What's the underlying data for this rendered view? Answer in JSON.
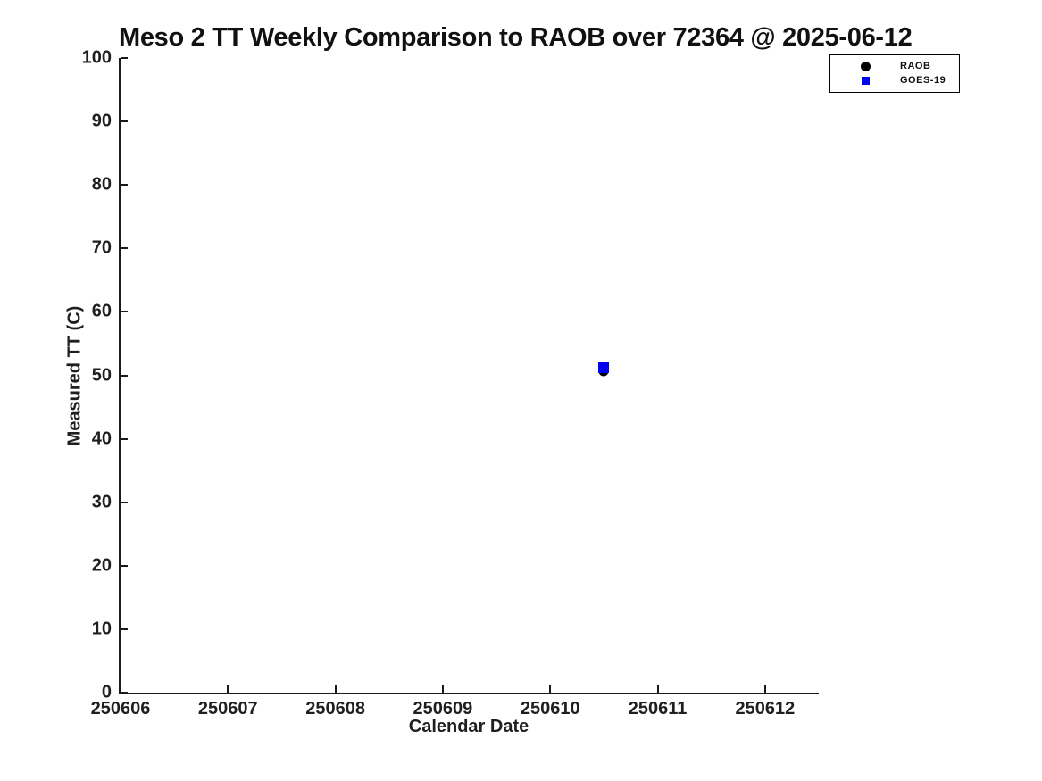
{
  "chart_data": {
    "type": "scatter",
    "title": "Meso 2 TT Weekly Comparison to RAOB over 72364 @ 2025-06-12",
    "xlabel": "Calendar Date",
    "ylabel": "Measured TT (C)",
    "xlim": [
      250606,
      250612.5
    ],
    "ylim": [
      0,
      100
    ],
    "x_ticks": [
      250606,
      250607,
      250608,
      250609,
      250610,
      250611,
      250612
    ],
    "y_ticks": [
      0,
      10,
      20,
      30,
      40,
      50,
      60,
      70,
      80,
      90,
      100
    ],
    "grid": false,
    "legend_position": "top-right",
    "series": [
      {
        "name": "RAOB",
        "marker": "circle",
        "color": "#000000",
        "marker_size": 11,
        "points": [
          {
            "x": 250610.5,
            "y": 50.6
          }
        ]
      },
      {
        "name": "GOES-19",
        "marker": "square",
        "color": "#0202ee",
        "marker_size": 12,
        "points": [
          {
            "x": 250610.5,
            "y": 51.2
          }
        ]
      }
    ]
  },
  "colors": {
    "axis": "#1a1a1a",
    "text": "#1f1f1f",
    "background": "#ffffff",
    "legend_border": "#000000"
  }
}
